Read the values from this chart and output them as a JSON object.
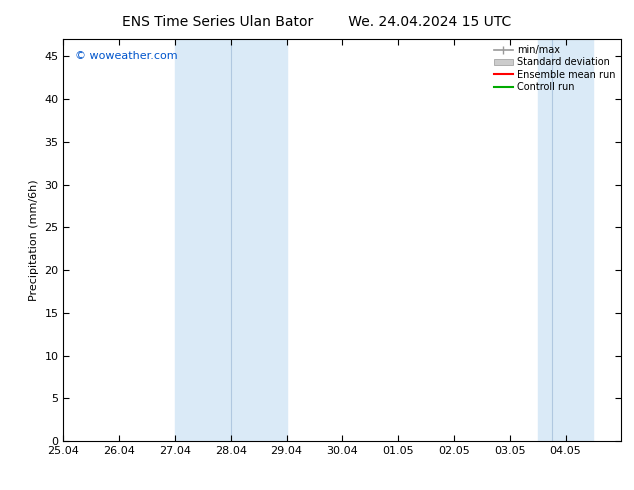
{
  "title_left": "ENS Time Series Ulan Bator",
  "title_right": "We. 24.04.2024 15 UTC",
  "ylabel": "Precipitation (mm/6h)",
  "watermark": "© woweather.com",
  "ymin": 0,
  "ymax": 47,
  "yticks": [
    0,
    5,
    10,
    15,
    20,
    25,
    30,
    35,
    40,
    45
  ],
  "xtick_labels": [
    "25.04",
    "26.04",
    "27.04",
    "28.04",
    "29.04",
    "30.04",
    "01.05",
    "02.05",
    "03.05",
    "04.05"
  ],
  "shaded_color": "#daeaf7",
  "band1_xstart": 2.0,
  "band1_xend": 4.0,
  "band2_xstart": 8.5,
  "band2_xend": 9.5,
  "divider_lines": [
    3.0,
    8.75
  ],
  "bg_color": "#ffffff",
  "plot_bg_color": "#ffffff",
  "font_family": "DejaVu Sans",
  "title_fontsize": 10,
  "axis_fontsize": 8,
  "tick_fontsize": 8,
  "watermark_color": "#0055cc",
  "watermark_fontsize": 8
}
